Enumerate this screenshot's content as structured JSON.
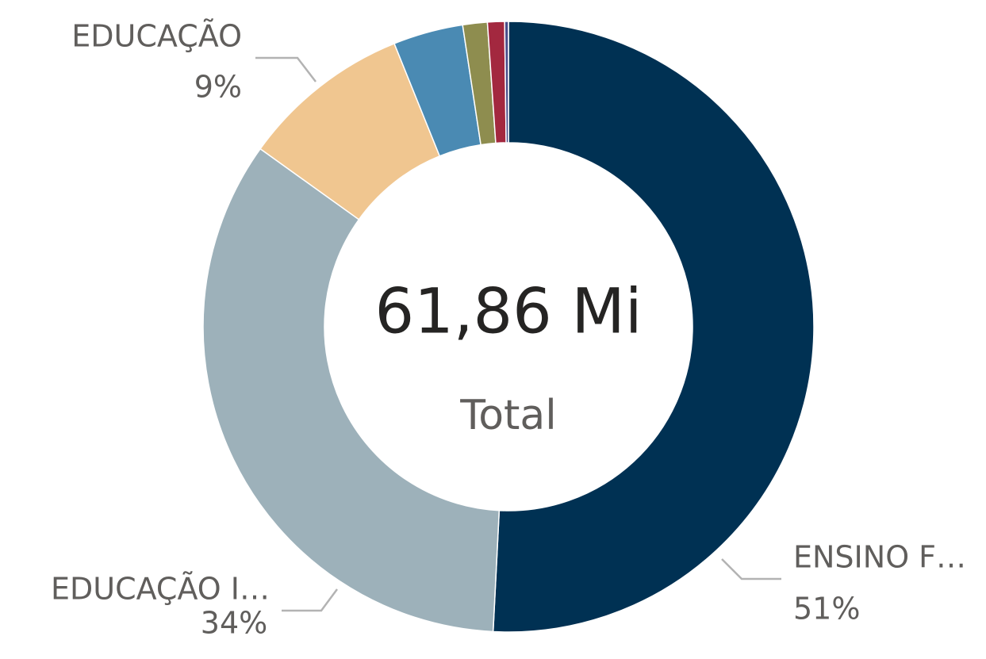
{
  "chart_data": {
    "type": "donut",
    "center_value": "61,86 Mi",
    "center_label": "Total",
    "categories": [
      "ENSINO F…",
      "EDUCAÇÃO I…",
      "EDUCAÇÃO",
      null,
      null,
      null,
      null
    ],
    "values": [
      50.8,
      34.1,
      9.0,
      3.7,
      1.3,
      0.9,
      0.2
    ],
    "value_labels": [
      "51%",
      "34%",
      "9%",
      null,
      null,
      null,
      null
    ],
    "colors": [
      "#003153",
      "#9db1ba",
      "#f0c690",
      "#4a8ab3",
      "#8e8d4f",
      "#a3283f",
      "#4a4d8a"
    ]
  }
}
